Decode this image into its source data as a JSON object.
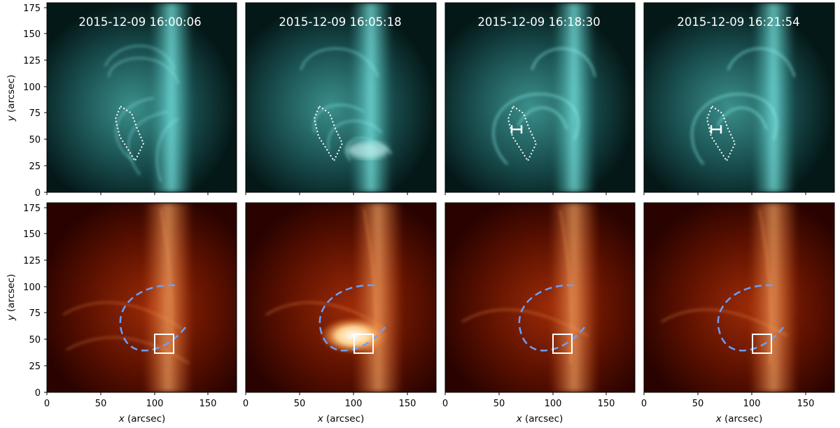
{
  "figure": {
    "timestamps": [
      "2015-12-09 16:00:06",
      "2015-12-09 16:05:18",
      "2015-12-09 16:18:30",
      "2015-12-09 16:21:54"
    ],
    "x_label_italic": "x",
    "x_label_units": " (arcsec)",
    "y_label_italic": "y",
    "y_label_units": " (arcsec)",
    "x_ticks": [
      "0",
      "50",
      "100",
      "150"
    ],
    "y_ticks": [
      "0",
      "25",
      "50",
      "75",
      "100",
      "125",
      "150",
      "175"
    ],
    "colors": {
      "top_row_base": "#041a1a",
      "top_row_bright": "#7ff3ee",
      "bottom_row_base": "#2a0300",
      "bottom_row_bright": "#ffb070",
      "annotation_white": "#ffffff",
      "loop_dashed_blue": "#6aa0ff"
    }
  }
}
